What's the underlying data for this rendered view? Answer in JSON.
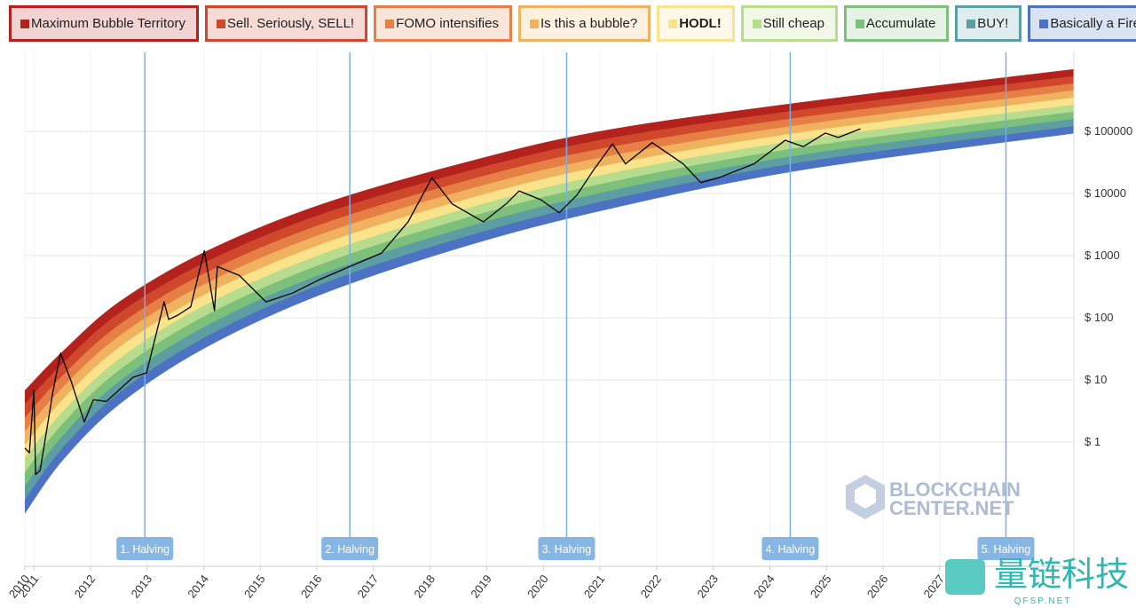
{
  "chart_data": {
    "type": "rainbow",
    "log_y": true,
    "xlim": [
      2010.84,
      2029.37
    ],
    "xticks": [
      {
        "value": 2010.84,
        "label": "2010"
      },
      2011,
      2012,
      2013,
      2014,
      2015,
      2016,
      2017,
      2018,
      2019,
      2020,
      2021,
      2022,
      2023,
      2024,
      2025,
      2026,
      2027
    ],
    "ylim": [
      0.01,
      2000000
    ],
    "yticks": [
      {
        "value": 1,
        "label": "$ 1"
      },
      {
        "value": 10,
        "label": "$ 10"
      },
      {
        "value": 100,
        "label": "$ 100"
      },
      {
        "value": 1000,
        "label": "$ 1000"
      },
      {
        "value": 10000,
        "label": "$ 10000"
      },
      {
        "value": 100000,
        "label": "$ 100000"
      }
    ],
    "grid": true,
    "bands": {
      "x": [
        2010.84,
        2011.5,
        2012.5,
        2014,
        2016,
        2018.5,
        2021,
        2024.5,
        2029.37
      ],
      "floor": [
        0.071,
        0.5,
        4.0,
        32,
        224,
        1318,
        5248,
        23442,
        93325
      ],
      "series": [
        {
          "name": "Maximum Bubble Territory",
          "color": "#b3221c",
          "values": [
            6.76,
            28.2,
            178,
            1122,
            6310,
            29512,
            100000,
            288400,
            1000000
          ]
        },
        {
          "name": "Sell. Seriously, SELL!",
          "color": "#d0482c",
          "values": [
            4.07,
            18,
            117,
            755,
            4355,
            20893,
            72111,
            218300,
            769100
          ]
        },
        {
          "name": "FOMO intensifies",
          "color": "#e57f45",
          "values": [
            2.45,
            11.5,
            76,
            508,
            3006,
            14791,
            51999,
            165200,
            590200
          ]
        },
        {
          "name": "Is this a bubble?",
          "color": "#f0b25e",
          "values": [
            1.48,
            7.4,
            50,
            341,
            2075,
            10471,
            37411,
            125000,
            453900
          ]
        },
        {
          "name": "HODL!",
          "color": "#fbe38c",
          "values": [
            0.89,
            4.7,
            32.9,
            230,
            1432,
            7413,
            26977,
            94558,
            348300
          ]
        },
        {
          "name": "Still cheap",
          "color": "#b8dc8d",
          "values": [
            0.54,
            3.0,
            21.5,
            155,
            987,
            5248,
            19454,
            71450,
            267900
          ]
        },
        {
          "name": "Accumulate",
          "color": "#7cc07b",
          "values": [
            0.32,
            1.92,
            14.1,
            104,
            681,
            3715,
            14028,
            54075,
            205600
          ]
        },
        {
          "name": "BUY!",
          "color": "#5d9ea3",
          "values": [
            0.195,
            1.23,
            9.3,
            70,
            470,
            2630,
            10093,
            40926,
            158100
          ]
        },
        {
          "name": "Basically a Fire Sale",
          "color": "#4c72c4",
          "values": [
            0.117,
            0.78,
            6.1,
            47,
            324,
            1862,
            7278,
            30974,
            121300
          ]
        }
      ]
    },
    "series": [
      {
        "color": "#000000",
        "x": [
          2010.84,
          2010.92,
          2011.0,
          2011.03,
          2011.11,
          2011.34,
          2011.47,
          2011.66,
          2011.89,
          2012.05,
          2012.28,
          2012.75,
          2012.99,
          2013.3,
          2013.38,
          2013.54,
          2013.77,
          2014.01,
          2014.19,
          2014.24,
          2014.63,
          2015.1,
          2015.57,
          2016.04,
          2016.58,
          2017.14,
          2017.61,
          2018.03,
          2018.39,
          2018.94,
          2019.34,
          2019.57,
          2019.96,
          2020.28,
          2020.59,
          2020.9,
          2021.22,
          2021.45,
          2021.92,
          2022.47,
          2022.78,
          2023.1,
          2023.72,
          2024.27,
          2024.59,
          2024.98,
          2025.21,
          2025.6
        ],
        "values": [
          0.8,
          0.67,
          6.8,
          0.3,
          0.35,
          6.8,
          27,
          9.4,
          2.1,
          4.8,
          4.5,
          11,
          13,
          180,
          94,
          110,
          150,
          1200,
          130,
          670,
          480,
          180,
          250,
          410,
          670,
          1100,
          3500,
          18000,
          6800,
          3500,
          6800,
          11000,
          7900,
          4900,
          9400,
          25000,
          63000,
          30000,
          66000,
          30000,
          15000,
          18000,
          30000,
          72000,
          57000,
          94000,
          80000,
          110000
        ]
      }
    ],
    "annotations": [
      {
        "x": 2012.96,
        "label": "1. Halving"
      },
      {
        "x": 2016.58,
        "label": "2. Halving"
      },
      {
        "x": 2020.41,
        "label": "3. Halving"
      },
      {
        "x": 2024.36,
        "label": "4. Halving"
      },
      {
        "x": 2028.17,
        "label": "5. Halving"
      }
    ]
  },
  "watermarks": {
    "logo": [
      "BLOCKCHAIN",
      "CENTER.NET"
    ],
    "corner": [
      "量链科技",
      "QFSP.NET"
    ]
  }
}
